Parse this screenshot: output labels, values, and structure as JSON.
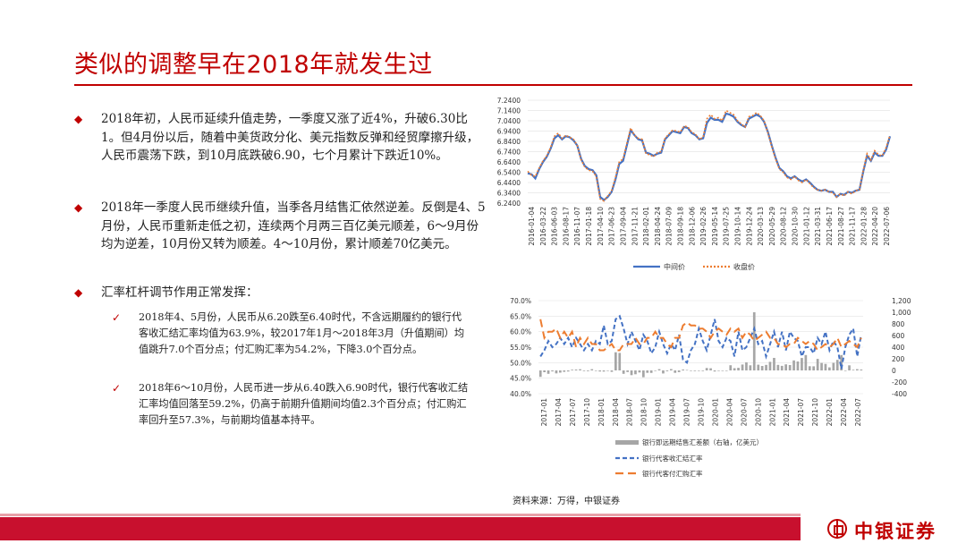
{
  "title": "类似的调整早在2018年就发生过",
  "bullets": [
    "2018年初，人民币延续升值走势，一季度又涨了近4%，升破6.30比1。但4月份以后，随着中美货政分化、美元指数反弹和经贸摩擦升级，人民币震荡下跌，到10月底跌破6.90，七个月累计下跌近10%。",
    "2018年一季度人民币继续升值，当季各月结售汇依然逆差。反倒是4、5月份，人民币重新走低之初，连续两个月两三百亿美元顺差，6～9月份均为逆差，10月份又转为顺差。4～10月份，累计顺差70亿美元。",
    "汇率杠杆调节作用正常发挥："
  ],
  "bullet_mark": "◆",
  "sub_mark": "✓",
  "subs": [
    "2018年4、5月份，人民币从6.20跌至6.40时代，不含远期履约的银行代客收汇结汇率均值为63.9%，较2017年1月～2018年3月（升值期间）均值跳升7.0个百分点；付汇购汇率为54.2%，下降3.0个百分点。",
    "2018年6～10月份，人民币进一步从6.40跌入6.90时代，银行代客收汇结汇率均值回落至59.2%，仍高于前期升值期间均值2.3个百分点；付汇购汇率回升至57.3%，与前期均值基本持平。"
  ],
  "source": "资料来源：万得，中银证券",
  "logo_text": "中银证券",
  "chart_data": [
    {
      "type": "line",
      "yticks": [
        "7.2400",
        "7.1400",
        "7.0400",
        "6.9400",
        "6.8400",
        "6.7400",
        "6.6400",
        "6.5400",
        "6.4400",
        "6.3400",
        "6.2400"
      ],
      "ylim": [
        6.24,
        7.24
      ],
      "xticks": [
        "2016-01-04",
        "2016-03-22",
        "2016-06-03",
        "2016-08-17",
        "2016-11-07",
        "2017-01-18",
        "2017-04-10",
        "2017-06-23",
        "2017-09-04",
        "2017-11-21",
        "2018-02-01",
        "2018-04-24",
        "2018-07-09",
        "2018-09-18",
        "2018-12-06",
        "2019-02-26",
        "2019-05-14",
        "2019-07-25",
        "2019-10-14",
        "2019-12-24",
        "2020-03-13",
        "2020-05-29",
        "2020-08-12",
        "2020-10-30",
        "2021-01-12",
        "2021-03-31",
        "2021-06-17",
        "2021-08-27",
        "2021-11-17",
        "2022-01-28",
        "2022-04-20",
        "2022-07-06"
      ],
      "series": [
        {
          "name": "中间价",
          "color": "#4472c4",
          "style": "solid",
          "values": [
            6.53,
            6.52,
            6.48,
            6.57,
            6.64,
            6.69,
            6.77,
            6.87,
            6.9,
            6.86,
            6.89,
            6.88,
            6.85,
            6.8,
            6.67,
            6.6,
            6.57,
            6.56,
            6.51,
            6.3,
            6.27,
            6.3,
            6.35,
            6.47,
            6.62,
            6.65,
            6.8,
            6.95,
            6.9,
            6.86,
            6.85,
            6.73,
            6.72,
            6.7,
            6.72,
            6.73,
            6.86,
            6.9,
            6.94,
            6.93,
            6.92,
            6.98,
            6.97,
            6.92,
            6.9,
            6.86,
            6.87,
            7.02,
            7.07,
            7.05,
            7.05,
            7.03,
            7.11,
            7.1,
            7.08,
            7.03,
            7.0,
            6.98,
            7.06,
            7.08,
            7.1,
            7.08,
            7.03,
            6.93,
            6.8,
            6.68,
            6.58,
            6.55,
            6.5,
            6.48,
            6.5,
            6.47,
            6.45,
            6.47,
            6.44,
            6.4,
            6.37,
            6.36,
            6.37,
            6.35,
            6.35,
            6.3,
            6.33,
            6.32,
            6.35,
            6.34,
            6.36,
            6.37,
            6.55,
            6.7,
            6.65,
            6.73,
            6.7,
            6.7,
            6.76,
            6.89
          ]
        },
        {
          "name": "收盘价",
          "color": "#ed7d31",
          "style": "dotted",
          "values": [
            6.55,
            6.51,
            6.5,
            6.58,
            6.65,
            6.7,
            6.78,
            6.89,
            6.92,
            6.87,
            6.9,
            6.88,
            6.86,
            6.8,
            6.66,
            6.59,
            6.56,
            6.55,
            6.5,
            6.28,
            6.26,
            6.31,
            6.36,
            6.49,
            6.64,
            6.67,
            6.82,
            6.97,
            6.9,
            6.87,
            6.86,
            6.72,
            6.71,
            6.69,
            6.73,
            6.74,
            6.87,
            6.91,
            6.95,
            6.94,
            6.93,
            6.99,
            6.98,
            6.93,
            6.91,
            6.86,
            6.88,
            7.06,
            7.1,
            7.06,
            7.07,
            7.04,
            7.14,
            7.12,
            7.1,
            7.04,
            7.01,
            6.98,
            7.08,
            7.09,
            7.12,
            7.09,
            7.04,
            6.92,
            6.79,
            6.67,
            6.57,
            6.54,
            6.49,
            6.47,
            6.5,
            6.46,
            6.44,
            6.47,
            6.43,
            6.39,
            6.37,
            6.36,
            6.37,
            6.35,
            6.34,
            6.3,
            6.33,
            6.31,
            6.35,
            6.33,
            6.36,
            6.37,
            6.56,
            6.72,
            6.66,
            6.75,
            6.71,
            6.7,
            6.78,
            6.9
          ]
        }
      ],
      "legend_position": "bottom",
      "grid": true
    },
    {
      "type": "bar+line",
      "yticks_left": [
        "70.0%",
        "65.0%",
        "60.0%",
        "55.0%",
        "50.0%",
        "45.0%",
        "40.0%"
      ],
      "ylim_left": [
        0.4,
        0.7
      ],
      "yticks_right": [
        "1,200",
        "1,000",
        "800",
        "600",
        "400",
        "200",
        "0",
        "-200",
        "-400"
      ],
      "ylim_right": [
        -400,
        1200
      ],
      "xticks": [
        "2017-01",
        "2017-04",
        "2017-07",
        "2017-10",
        "2018-01",
        "2018-04",
        "2018-07",
        "2018-10",
        "2019-01",
        "2019-04",
        "2019-07",
        "2019-10",
        "2020-01",
        "2020-04",
        "2020-07",
        "2020-10",
        "2021-01",
        "2021-04",
        "2021-07",
        "2021-10",
        "2022-01",
        "2022-04",
        "2022-07"
      ],
      "bars": {
        "name": "银行即远期结售汇差额（右轴，亿美元）",
        "color": "#a6a6a6",
        "values": [
          -111,
          -30,
          -58,
          -17,
          -51,
          -38,
          -24,
          -18,
          13,
          15,
          20,
          -10,
          -12,
          22,
          -1,
          -19,
          -20,
          -4,
          -24,
          312,
          301,
          -59,
          -28,
          -81,
          -66,
          -36,
          -117,
          -41,
          -43,
          -5,
          22,
          -52,
          -14,
          23,
          -41,
          -29,
          16,
          8,
          -5,
          -10,
          -1,
          -10,
          41,
          37,
          -18,
          -5,
          -5,
          -3,
          89,
          39,
          45,
          101,
          138,
          87,
          1000,
          98,
          77,
          95,
          147,
          215,
          95,
          79,
          105,
          93,
          173,
          154,
          214,
          264,
          72,
          71,
          199,
          127,
          113,
          52,
          129,
          182,
          264,
          -5,
          88,
          10,
          22,
          16
        ]
      },
      "series": [
        {
          "name": "银行代客收汇结汇率",
          "color": "#4472c4",
          "style": "dashed",
          "values": [
            0.52,
            0.54,
            0.57,
            0.55,
            0.56,
            0.58,
            0.56,
            0.58,
            0.55,
            0.58,
            0.56,
            0.54,
            0.56,
            0.54,
            0.57,
            0.56,
            0.62,
            0.56,
            0.57,
            0.64,
            0.65,
            0.61,
            0.56,
            0.6,
            0.57,
            0.54,
            0.59,
            0.57,
            0.53,
            0.55,
            0.6,
            0.56,
            0.53,
            0.56,
            0.54,
            0.59,
            0.51,
            0.5,
            0.54,
            0.56,
            0.61,
            0.57,
            0.54,
            0.59,
            0.64,
            0.57,
            0.55,
            0.58,
            0.57,
            0.52,
            0.6,
            0.54,
            0.55,
            0.58,
            0.61,
            0.56,
            0.57,
            0.52,
            0.56,
            0.6,
            0.55,
            0.6,
            0.54,
            0.6,
            0.58,
            0.57,
            0.52,
            0.55,
            0.55,
            0.53,
            0.58,
            0.56,
            0.6,
            0.54,
            0.57,
            0.55,
            0.48,
            0.55,
            0.59,
            0.61,
            0.52,
            0.59
          ]
        },
        {
          "name": "银行代客付汇购汇率",
          "color": "#ed7d31",
          "style": "longdash",
          "values": [
            0.64,
            0.58,
            0.6,
            0.6,
            0.61,
            0.58,
            0.6,
            0.58,
            0.6,
            0.55,
            0.58,
            0.56,
            0.58,
            0.56,
            0.56,
            0.54,
            0.54,
            0.55,
            0.56,
            0.54,
            0.54,
            0.56,
            0.56,
            0.56,
            0.58,
            0.56,
            0.56,
            0.58,
            0.58,
            0.6,
            0.58,
            0.58,
            0.56,
            0.55,
            0.58,
            0.58,
            0.62,
            0.63,
            0.62,
            0.62,
            0.61,
            0.61,
            0.6,
            0.58,
            0.6,
            0.61,
            0.6,
            0.59,
            0.61,
            0.6,
            0.61,
            0.58,
            0.6,
            0.59,
            0.57,
            0.58,
            0.59,
            0.6,
            0.58,
            0.58,
            0.56,
            0.56,
            0.55,
            0.56,
            0.56,
            0.58,
            0.57,
            0.56,
            0.57,
            0.56,
            0.54,
            0.55,
            0.56,
            0.55,
            0.56,
            0.58,
            0.55,
            0.56,
            0.57,
            0.56,
            0.55,
            0.58
          ]
        }
      ],
      "legend_position": "bottom",
      "grid": true
    }
  ]
}
